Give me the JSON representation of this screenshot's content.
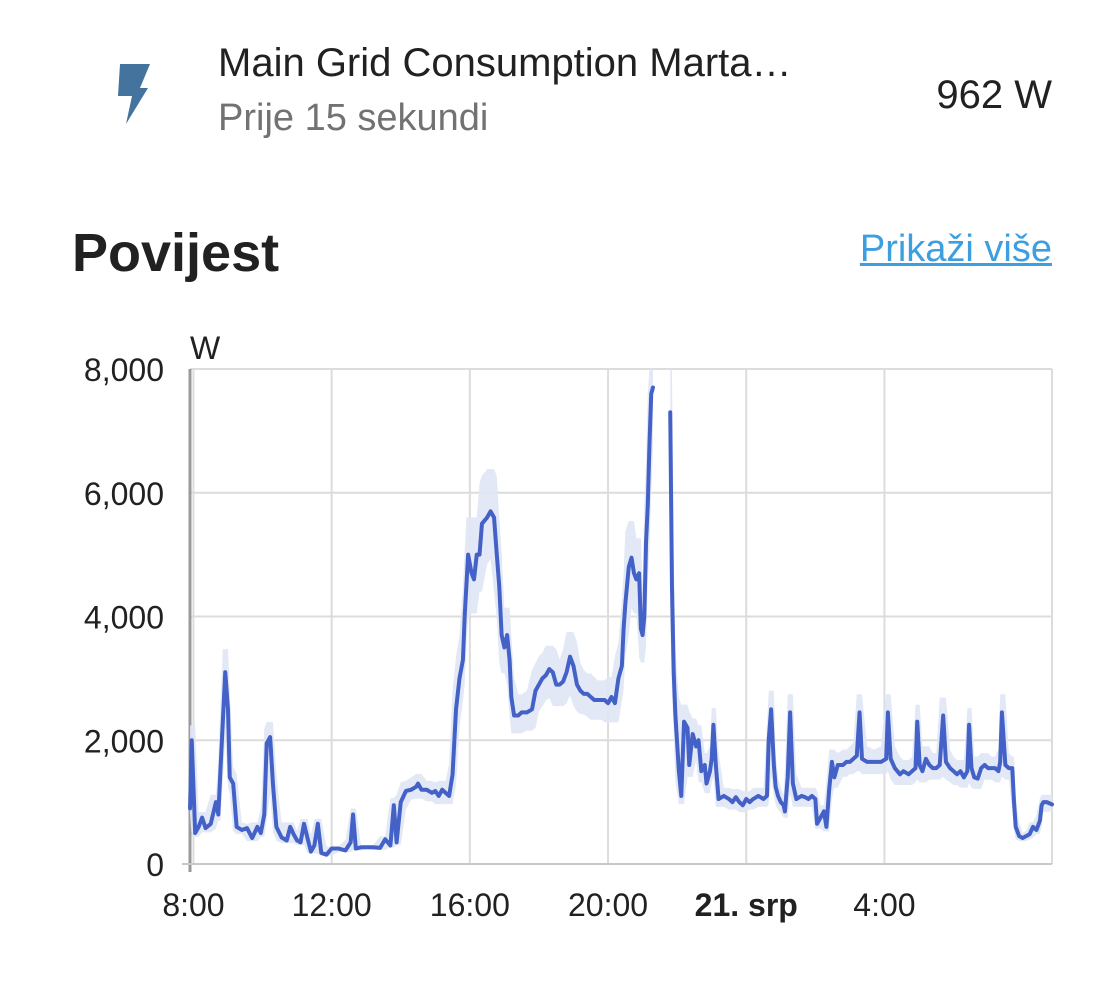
{
  "entity": {
    "icon": "lightning-bolt-icon",
    "name": "Main Grid Consumption Marta…",
    "last_changed": "Prije 15 sekundi",
    "state": "962 W",
    "icon_color": "#44739e"
  },
  "history": {
    "title": "Povijest",
    "show_more": "Prikaži više",
    "link_color": "#3d9ee0"
  },
  "chart_data": {
    "type": "line",
    "unit_label": "W",
    "ylim": [
      0,
      8000
    ],
    "yticks": [
      "0",
      "2,000",
      "4,000",
      "6,000",
      "8,000"
    ],
    "ytick_values": [
      0,
      2000,
      4000,
      6000,
      8000
    ],
    "xlim": [
      7.9,
      31.9
    ],
    "xticks": [
      {
        "label": "8:00",
        "hour": 8,
        "bold": false
      },
      {
        "label": "12:00",
        "hour": 12,
        "bold": false
      },
      {
        "label": "16:00",
        "hour": 16,
        "bold": false
      },
      {
        "label": "20:00",
        "hour": 20,
        "bold": false
      },
      {
        "label": "21. srp",
        "hour": 24,
        "bold": true
      },
      {
        "label": "4:00",
        "hour": 28,
        "bold": false
      }
    ],
    "grid": true,
    "line_color": "#4361c7",
    "band_color": "#dfe5f5",
    "series": [
      {
        "values": [
          [
            7.9,
            900
          ],
          [
            7.95,
            2000
          ],
          [
            8.05,
            500
          ],
          [
            8.15,
            600
          ],
          [
            8.25,
            750
          ],
          [
            8.35,
            580
          ],
          [
            8.5,
            650
          ],
          [
            8.65,
            1000
          ],
          [
            8.72,
            800
          ],
          [
            8.78,
            1500
          ],
          [
            8.85,
            2300
          ],
          [
            8.92,
            3100
          ],
          [
            9.0,
            2500
          ],
          [
            9.05,
            1400
          ],
          [
            9.15,
            1300
          ],
          [
            9.25,
            600
          ],
          [
            9.4,
            550
          ],
          [
            9.55,
            580
          ],
          [
            9.7,
            420
          ],
          [
            9.85,
            600
          ],
          [
            9.95,
            500
          ],
          [
            10.05,
            800
          ],
          [
            10.12,
            1950
          ],
          [
            10.22,
            2050
          ],
          [
            10.3,
            1300
          ],
          [
            10.4,
            600
          ],
          [
            10.55,
            430
          ],
          [
            10.7,
            380
          ],
          [
            10.8,
            600
          ],
          [
            10.9,
            480
          ],
          [
            11.0,
            380
          ],
          [
            11.1,
            350
          ],
          [
            11.2,
            650
          ],
          [
            11.3,
            420
          ],
          [
            11.4,
            200
          ],
          [
            11.5,
            300
          ],
          [
            11.6,
            650
          ],
          [
            11.7,
            180
          ],
          [
            11.85,
            150
          ],
          [
            12.0,
            250
          ],
          [
            12.2,
            250
          ],
          [
            12.4,
            220
          ],
          [
            12.55,
            350
          ],
          [
            12.62,
            800
          ],
          [
            12.7,
            250
          ],
          [
            12.85,
            270
          ],
          [
            13.0,
            270
          ],
          [
            13.2,
            270
          ],
          [
            13.4,
            260
          ],
          [
            13.55,
            400
          ],
          [
            13.7,
            300
          ],
          [
            13.8,
            950
          ],
          [
            13.88,
            350
          ],
          [
            14.0,
            1000
          ],
          [
            14.15,
            1180
          ],
          [
            14.3,
            1200
          ],
          [
            14.45,
            1250
          ],
          [
            14.5,
            1300
          ],
          [
            14.6,
            1200
          ],
          [
            14.75,
            1200
          ],
          [
            14.9,
            1150
          ],
          [
            15.0,
            1180
          ],
          [
            15.1,
            1100
          ],
          [
            15.2,
            1200
          ],
          [
            15.3,
            1150
          ],
          [
            15.4,
            1100
          ],
          [
            15.5,
            1450
          ],
          [
            15.6,
            2500
          ],
          [
            15.7,
            3000
          ],
          [
            15.8,
            3300
          ],
          [
            15.85,
            4000
          ],
          [
            15.9,
            4500
          ],
          [
            15.95,
            5000
          ],
          [
            16.05,
            4700
          ],
          [
            16.12,
            4600
          ],
          [
            16.2,
            5000
          ],
          [
            16.28,
            5000
          ],
          [
            16.35,
            5500
          ],
          [
            16.5,
            5600
          ],
          [
            16.6,
            5700
          ],
          [
            16.7,
            5600
          ],
          [
            16.78,
            5000
          ],
          [
            16.85,
            4500
          ],
          [
            16.92,
            3700
          ],
          [
            17.0,
            3500
          ],
          [
            17.08,
            3700
          ],
          [
            17.15,
            3300
          ],
          [
            17.2,
            2700
          ],
          [
            17.28,
            2400
          ],
          [
            17.4,
            2400
          ],
          [
            17.5,
            2450
          ],
          [
            17.65,
            2450
          ],
          [
            17.8,
            2500
          ],
          [
            17.9,
            2800
          ],
          [
            18.0,
            2900
          ],
          [
            18.1,
            3000
          ],
          [
            18.2,
            3050
          ],
          [
            18.3,
            3150
          ],
          [
            18.4,
            3100
          ],
          [
            18.5,
            2900
          ],
          [
            18.6,
            2900
          ],
          [
            18.7,
            2950
          ],
          [
            18.8,
            3100
          ],
          [
            18.9,
            3350
          ],
          [
            19.0,
            3200
          ],
          [
            19.1,
            2900
          ],
          [
            19.2,
            2800
          ],
          [
            19.3,
            2750
          ],
          [
            19.4,
            2750
          ],
          [
            19.5,
            2700
          ],
          [
            19.6,
            2650
          ],
          [
            19.7,
            2650
          ],
          [
            19.8,
            2650
          ],
          [
            19.9,
            2650
          ],
          [
            20.0,
            2600
          ],
          [
            20.1,
            2700
          ],
          [
            20.2,
            2600
          ],
          [
            20.3,
            3000
          ],
          [
            20.4,
            3200
          ],
          [
            20.45,
            3800
          ],
          [
            20.5,
            4200
          ],
          [
            20.6,
            4800
          ],
          [
            20.68,
            4950
          ],
          [
            20.75,
            4700
          ],
          [
            20.82,
            4600
          ],
          [
            20.9,
            4700
          ],
          [
            20.95,
            3800
          ],
          [
            21.0,
            3700
          ],
          [
            21.05,
            4000
          ],
          [
            21.1,
            5200
          ],
          [
            21.15,
            5800
          ],
          [
            21.2,
            6800
          ],
          [
            21.25,
            7600
          ],
          [
            21.3,
            7700
          ]
        ]
      },
      {
        "values": [
          [
            21.8,
            7300
          ],
          [
            21.85,
            4500
          ],
          [
            21.9,
            3100
          ],
          [
            21.95,
            2400
          ],
          [
            22.05,
            1500
          ],
          [
            22.12,
            1100
          ],
          [
            22.2,
            2300
          ],
          [
            22.3,
            2200
          ],
          [
            22.35,
            1600
          ],
          [
            22.45,
            2100
          ],
          [
            22.55,
            1900
          ],
          [
            22.62,
            2000
          ],
          [
            22.7,
            1500
          ],
          [
            22.8,
            1600
          ],
          [
            22.85,
            1300
          ],
          [
            22.95,
            1500
          ],
          [
            23.0,
            1700
          ],
          [
            23.05,
            2250
          ],
          [
            23.12,
            1600
          ],
          [
            23.2,
            1050
          ],
          [
            23.35,
            1100
          ],
          [
            23.5,
            1050
          ],
          [
            23.6,
            1000
          ],
          [
            23.7,
            1080
          ],
          [
            23.8,
            1000
          ],
          [
            23.9,
            950
          ],
          [
            24.0,
            1050
          ],
          [
            24.1,
            1000
          ],
          [
            24.2,
            1050
          ],
          [
            24.35,
            1100
          ],
          [
            24.5,
            1050
          ],
          [
            24.6,
            1100
          ],
          [
            24.65,
            2000
          ],
          [
            24.72,
            2500
          ],
          [
            24.8,
            1600
          ],
          [
            24.85,
            1250
          ],
          [
            24.92,
            1100
          ],
          [
            25.0,
            1000
          ],
          [
            25.08,
            950
          ],
          [
            25.12,
            850
          ],
          [
            25.2,
            1400
          ],
          [
            25.27,
            2450
          ],
          [
            25.35,
            1300
          ],
          [
            25.45,
            1050
          ],
          [
            25.6,
            1100
          ],
          [
            25.7,
            1080
          ],
          [
            25.8,
            1050
          ],
          [
            25.9,
            1100
          ],
          [
            26.0,
            1050
          ],
          [
            26.05,
            650
          ],
          [
            26.15,
            750
          ],
          [
            26.25,
            850
          ],
          [
            26.32,
            600
          ],
          [
            26.4,
            1200
          ],
          [
            26.48,
            1650
          ],
          [
            26.55,
            1400
          ],
          [
            26.65,
            1600
          ],
          [
            26.8,
            1600
          ],
          [
            26.9,
            1650
          ],
          [
            27.0,
            1650
          ],
          [
            27.1,
            1700
          ],
          [
            27.2,
            1750
          ],
          [
            27.28,
            2450
          ],
          [
            27.35,
            1700
          ],
          [
            27.5,
            1650
          ],
          [
            27.7,
            1650
          ],
          [
            27.9,
            1650
          ],
          [
            28.05,
            1700
          ],
          [
            28.1,
            2450
          ],
          [
            28.18,
            1700
          ],
          [
            28.3,
            1550
          ],
          [
            28.45,
            1450
          ],
          [
            28.55,
            1500
          ],
          [
            28.7,
            1450
          ],
          [
            28.8,
            1500
          ],
          [
            28.9,
            1550
          ],
          [
            28.95,
            2300
          ],
          [
            29.02,
            1600
          ],
          [
            29.1,
            1500
          ],
          [
            29.2,
            1700
          ],
          [
            29.3,
            1600
          ],
          [
            29.4,
            1550
          ],
          [
            29.5,
            1550
          ],
          [
            29.6,
            1600
          ],
          [
            29.7,
            2400
          ],
          [
            29.78,
            1650
          ],
          [
            29.9,
            1550
          ],
          [
            30.0,
            1500
          ],
          [
            30.1,
            1450
          ],
          [
            30.2,
            1500
          ],
          [
            30.3,
            1400
          ],
          [
            30.4,
            1500
          ],
          [
            30.45,
            2250
          ],
          [
            30.52,
            1550
          ],
          [
            30.6,
            1400
          ],
          [
            30.7,
            1380
          ],
          [
            30.8,
            1550
          ],
          [
            30.9,
            1600
          ],
          [
            31.0,
            1550
          ],
          [
            31.1,
            1550
          ],
          [
            31.2,
            1550
          ],
          [
            31.3,
            1500
          ],
          [
            31.35,
            1650
          ],
          [
            31.4,
            2450
          ],
          [
            31.5,
            1600
          ],
          [
            31.6,
            1550
          ],
          [
            31.7,
            1550
          ],
          [
            31.75,
            1000
          ],
          [
            31.8,
            600
          ],
          [
            31.9,
            450
          ],
          [
            32.0,
            420
          ],
          [
            32.1,
            450
          ],
          [
            32.2,
            480
          ],
          [
            32.3,
            600
          ],
          [
            32.4,
            550
          ],
          [
            32.5,
            700
          ],
          [
            32.55,
            950
          ],
          [
            32.6,
            1000
          ],
          [
            32.7,
            1000
          ],
          [
            32.85,
            962
          ]
        ]
      }
    ]
  }
}
